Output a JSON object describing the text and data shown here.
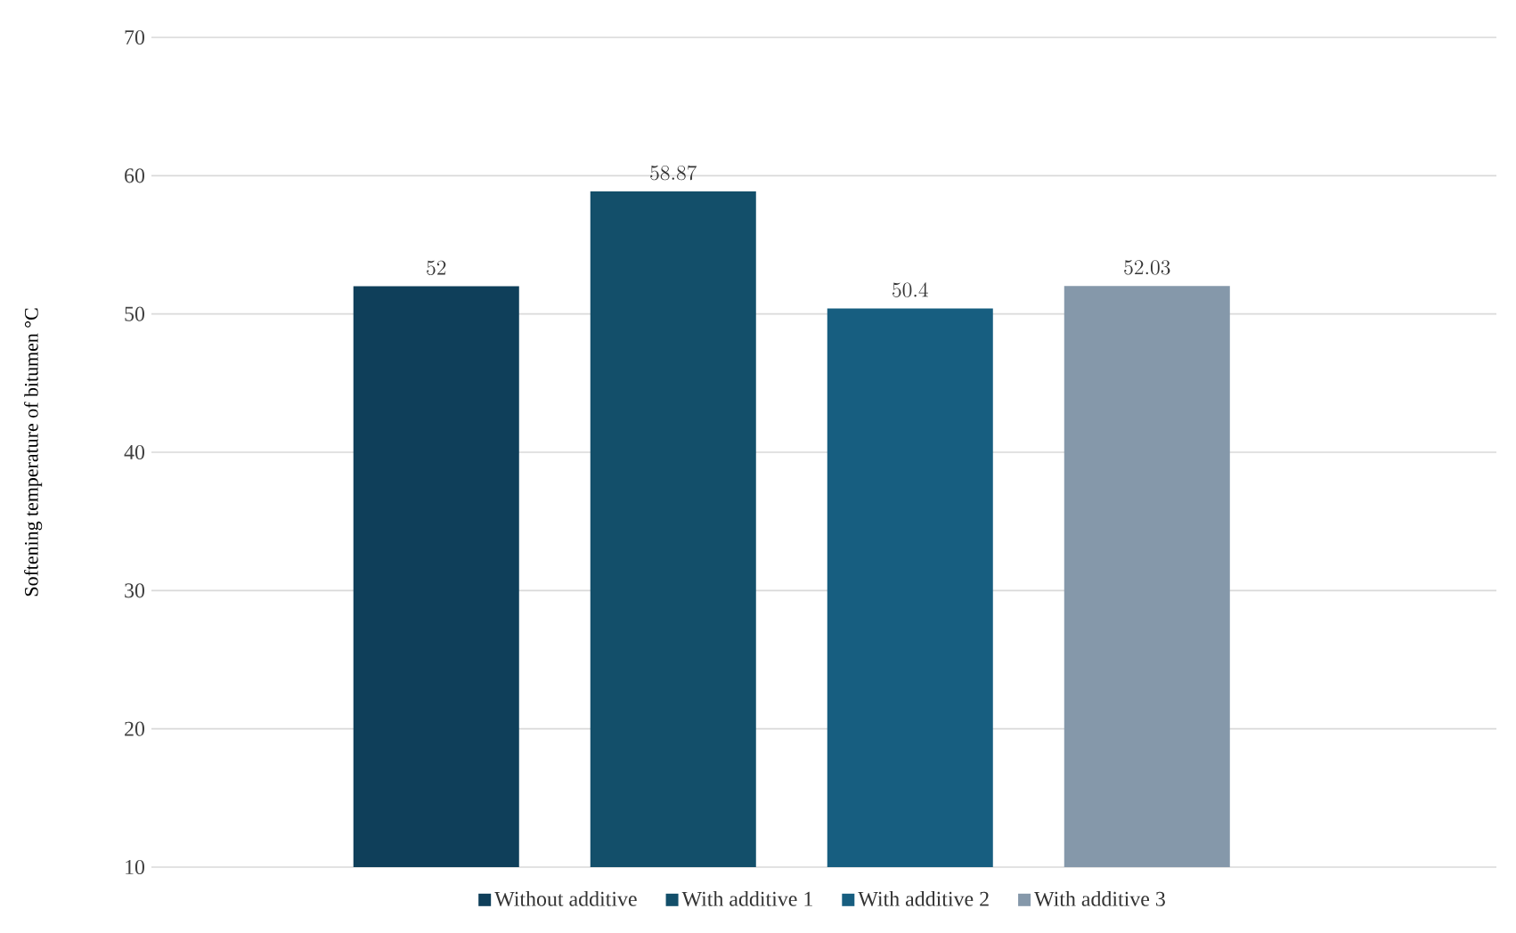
{
  "chart_data": {
    "type": "bar",
    "ylabel": "Softening temperature of bitumen °C",
    "categories": [
      null
    ],
    "series": [
      {
        "name": "Without additive",
        "color": "#0f3f5a",
        "values": [
          52
        ]
      },
      {
        "name": "With additive 1",
        "color": "#134f6a",
        "values": [
          58.87
        ]
      },
      {
        "name": "With additive 2",
        "color": "#175e80",
        "values": [
          50.4
        ]
      },
      {
        "name": "With additive 3",
        "color": "#8598aa",
        "values": [
          52.03
        ]
      }
    ],
    "ylim": [
      10,
      70
    ],
    "yticks": [
      10,
      20,
      30,
      40,
      50,
      60,
      70
    ],
    "grid": "y",
    "legend": "bottom",
    "data_labels": true
  }
}
